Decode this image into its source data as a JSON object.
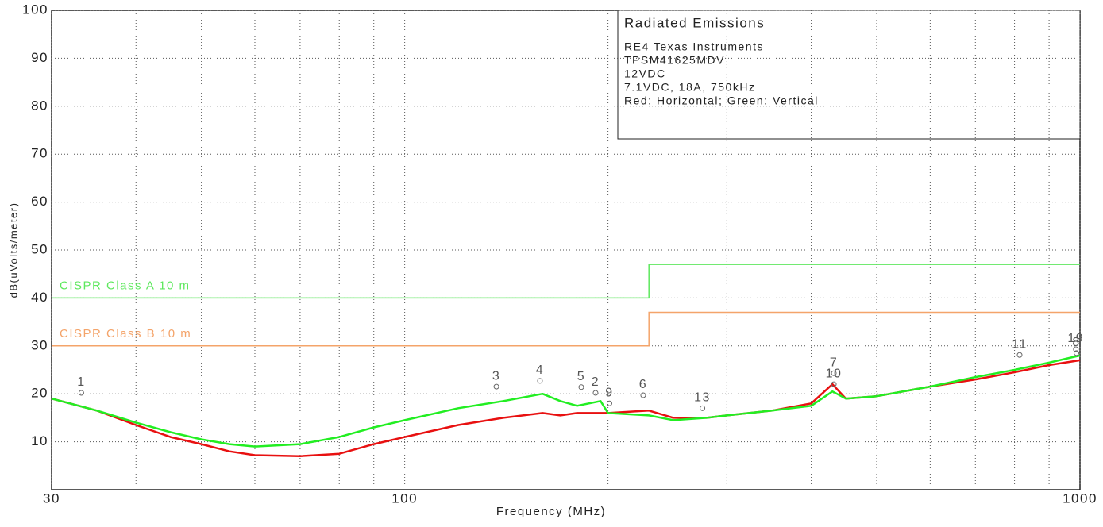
{
  "chart_data": {
    "type": "line",
    "title": "Radiated Emissions",
    "notes": [
      "RE4 Texas Instruments",
      "TPSM41625MDV",
      "12VDC",
      "7.1VDC, 18A, 750kHz",
      "Red: Horizontal; Green: Vertical"
    ],
    "xlabel": "Frequency (MHz)",
    "ylabel": "dB(uVolts/meter)",
    "xscale": "log",
    "grid": true,
    "xlim": [
      30,
      1000
    ],
    "ylim": [
      0,
      100
    ],
    "xticks": [
      30,
      100,
      1000
    ],
    "xgrid": [
      40,
      50,
      60,
      70,
      80,
      90,
      200,
      300,
      400,
      500,
      600,
      700,
      800,
      900
    ],
    "yticks": [
      10,
      20,
      30,
      40,
      50,
      60,
      70,
      80,
      90,
      100
    ],
    "limits": [
      {
        "name": "CISPR Class A 10 m",
        "color": "#5ee85e",
        "x": [
          30,
          230,
          230,
          1000
        ],
        "values": [
          40,
          40,
          47,
          47
        ]
      },
      {
        "name": "CISPR Class B 10 m",
        "color": "#f4a46a",
        "x": [
          30,
          230,
          230,
          1000
        ],
        "values": [
          30,
          30,
          37,
          37
        ]
      }
    ],
    "series": [
      {
        "color": "#e81010",
        "x": [
          30,
          35,
          40,
          45,
          50,
          55,
          60,
          70,
          80,
          90,
          100,
          120,
          140,
          160,
          170,
          180,
          200,
          230,
          250,
          280,
          300,
          350,
          400,
          430,
          450,
          500,
          600,
          700,
          800,
          900,
          1000
        ],
        "values": [
          19,
          16.5,
          13.5,
          11,
          9.5,
          8,
          7.2,
          7,
          7.5,
          9.5,
          11,
          13.5,
          15,
          16,
          15.5,
          16,
          16,
          16.5,
          15,
          15,
          15.5,
          16.5,
          18,
          22,
          19,
          19.5,
          21.5,
          23,
          24.5,
          26,
          27
        ]
      },
      {
        "color": "#22ee22",
        "x": [
          30,
          35,
          40,
          45,
          50,
          55,
          60,
          70,
          80,
          90,
          100,
          120,
          140,
          160,
          170,
          180,
          195,
          200,
          230,
          250,
          280,
          300,
          350,
          400,
          430,
          450,
          500,
          600,
          700,
          800,
          900,
          1000
        ],
        "values": [
          19,
          16.5,
          14,
          12,
          10.5,
          9.5,
          9,
          9.5,
          11,
          13,
          14.5,
          17,
          18.5,
          20,
          18.5,
          17.5,
          18.5,
          16,
          15.5,
          14.5,
          15,
          15.5,
          16.5,
          17.5,
          20.5,
          19,
          19.5,
          21.5,
          23.5,
          25,
          26.5,
          28
        ]
      }
    ],
    "markers": [
      {
        "label": "1",
        "x": 33.2,
        "y": 20.2
      },
      {
        "label": "3",
        "x": 136.7,
        "y": 21.5
      },
      {
        "label": "4",
        "x": 158.6,
        "y": 22.7
      },
      {
        "label": "5",
        "x": 182.6,
        "y": 21.4
      },
      {
        "label": "2",
        "x": 191.7,
        "y": 20.2
      },
      {
        "label": "9",
        "x": 201,
        "y": 18
      },
      {
        "label": "6",
        "x": 225.5,
        "y": 19.7
      },
      {
        "label": "13",
        "x": 276,
        "y": 17
      },
      {
        "label": "7",
        "x": 432,
        "y": 24.3
      },
      {
        "label": "10",
        "x": 432,
        "y": 22
      },
      {
        "label": "11",
        "x": 814,
        "y": 28.1
      },
      {
        "label": "19",
        "x": 986,
        "y": 29.3
      },
      {
        "label": "8",
        "x": 988,
        "y": 28.5
      }
    ]
  }
}
